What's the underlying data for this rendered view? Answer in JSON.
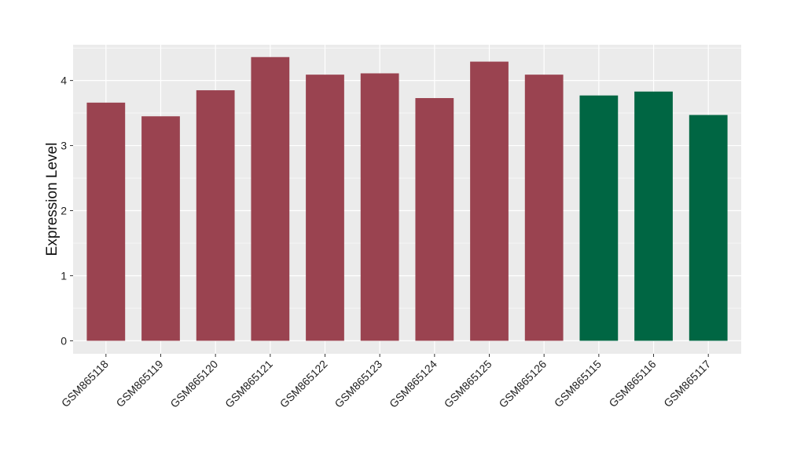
{
  "chart_data": {
    "type": "bar",
    "title": "",
    "xlabel": "",
    "ylabel": "Expression Level",
    "ylim": [
      -0.2,
      4.55
    ],
    "yticks": [
      0,
      1,
      2,
      3,
      4
    ],
    "grid": true,
    "categories": [
      "GSM865118",
      "GSM865119",
      "GSM865120",
      "GSM865121",
      "GSM865122",
      "GSM865123",
      "GSM865124",
      "GSM865125",
      "GSM865126",
      "GSM865115",
      "GSM865116",
      "GSM865117"
    ],
    "values": [
      3.66,
      3.45,
      3.85,
      4.36,
      4.09,
      4.11,
      3.73,
      4.29,
      4.09,
      3.77,
      3.83,
      3.47
    ],
    "bar_colors": [
      "#9a4350",
      "#9a4350",
      "#9a4350",
      "#9a4350",
      "#9a4350",
      "#9a4350",
      "#9a4350",
      "#9a4350",
      "#9a4350",
      "#006643",
      "#006643",
      "#006643"
    ],
    "panel_background": "#ebebeb",
    "grid_color": "#ffffff"
  }
}
